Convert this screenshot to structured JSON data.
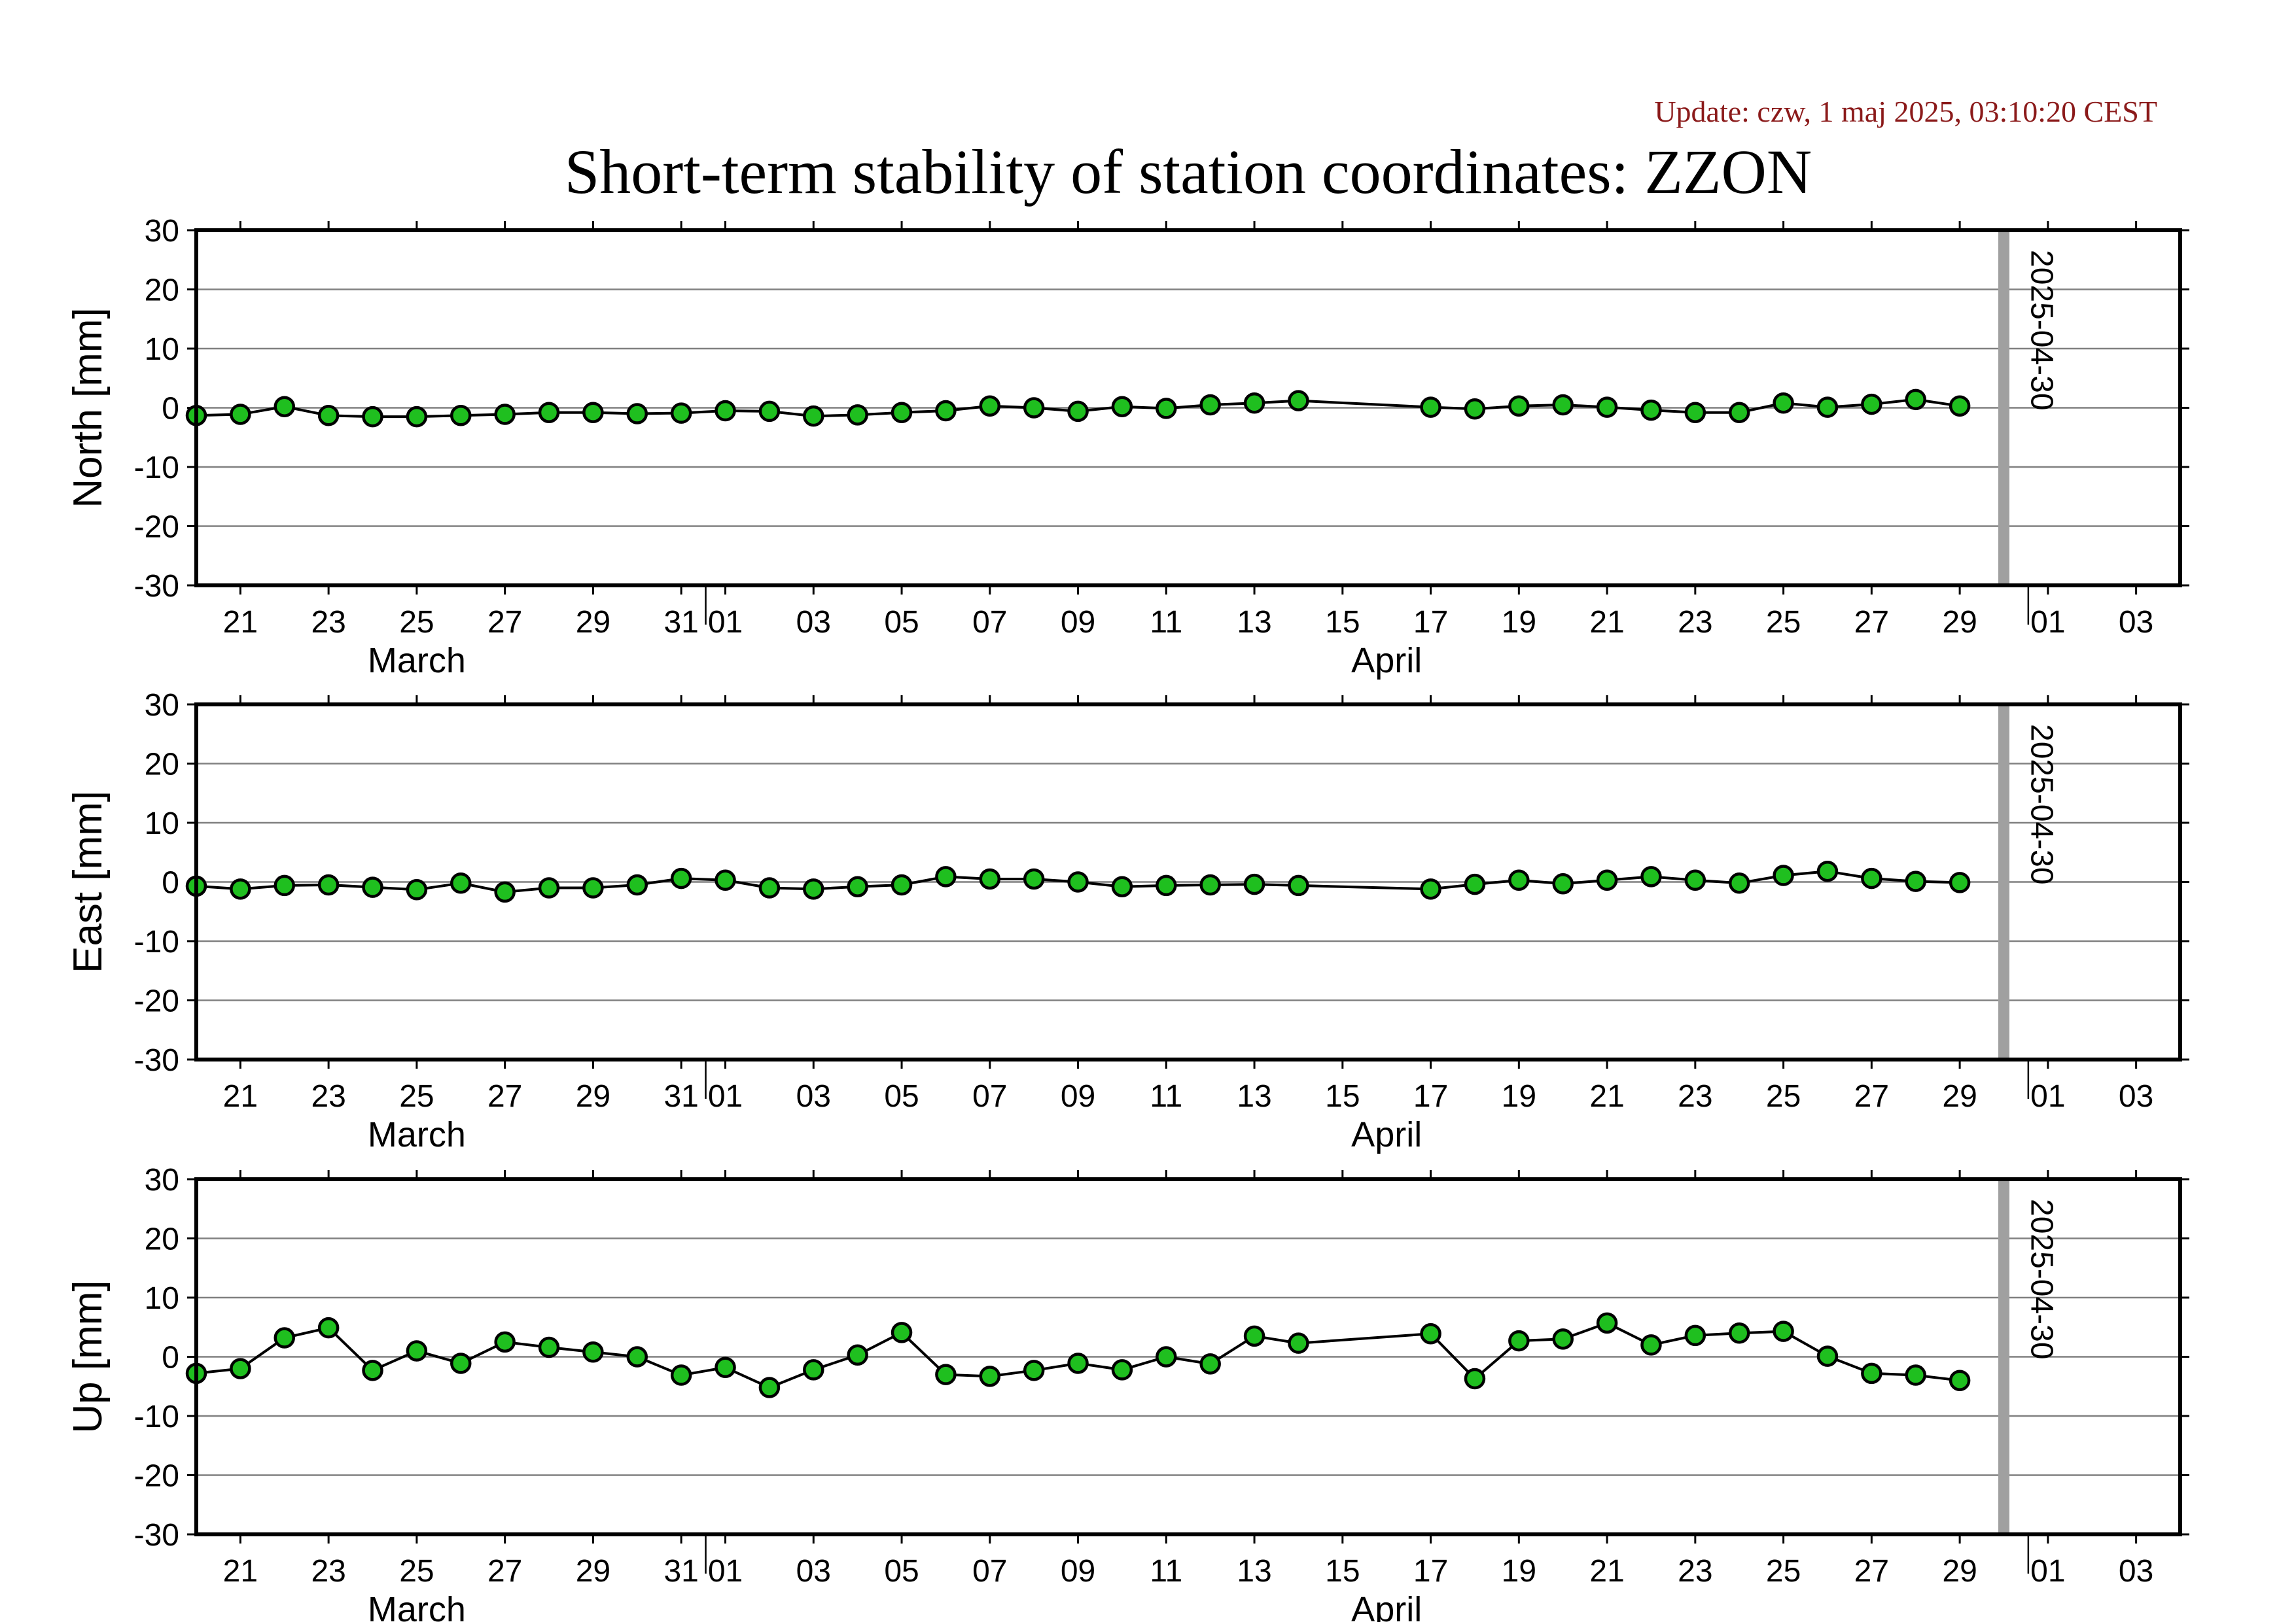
{
  "header": {
    "update": "Update: czw, 1 maj 2025, 03:10:20 CEST",
    "title": "Short-term stability of station coordinates: ZZON"
  },
  "style": {
    "point_fill": "#1fbf1f",
    "point_stroke": "#000000",
    "line": "#000000",
    "grid": "#808080",
    "marker_line": "#a0a0a0",
    "update_color": "#8b1a1a"
  },
  "chart_data": [
    {
      "type": "line",
      "panel": "north",
      "ylabel": "North [mm]",
      "ylim": [
        -30,
        30
      ],
      "yticks": [
        30,
        20,
        10,
        0,
        -10,
        -20,
        -30
      ],
      "xlim": [
        "2025-03-20",
        "2025-05-04"
      ],
      "grid": true,
      "xticks": [
        {
          "date": "2025-03-21",
          "label": "21"
        },
        {
          "date": "2025-03-23",
          "label": "23"
        },
        {
          "date": "2025-03-25",
          "label": "25"
        },
        {
          "date": "2025-03-27",
          "label": "27"
        },
        {
          "date": "2025-03-29",
          "label": "29"
        },
        {
          "date": "2025-03-31",
          "label": "31"
        },
        {
          "date": "2025-04-01",
          "label": "01"
        },
        {
          "date": "2025-04-03",
          "label": "03"
        },
        {
          "date": "2025-04-05",
          "label": "05"
        },
        {
          "date": "2025-04-07",
          "label": "07"
        },
        {
          "date": "2025-04-09",
          "label": "09"
        },
        {
          "date": "2025-04-11",
          "label": "11"
        },
        {
          "date": "2025-04-13",
          "label": "13"
        },
        {
          "date": "2025-04-15",
          "label": "15"
        },
        {
          "date": "2025-04-17",
          "label": "17"
        },
        {
          "date": "2025-04-19",
          "label": "19"
        },
        {
          "date": "2025-04-21",
          "label": "21"
        },
        {
          "date": "2025-04-23",
          "label": "23"
        },
        {
          "date": "2025-04-25",
          "label": "25"
        },
        {
          "date": "2025-04-27",
          "label": "27"
        },
        {
          "date": "2025-04-29",
          "label": "29"
        },
        {
          "date": "2025-05-01",
          "label": "01"
        },
        {
          "date": "2025-05-03",
          "label": "03"
        }
      ],
      "month_labels": [
        {
          "date": "2025-03-25",
          "label": "March"
        },
        {
          "date": "2025-04-16",
          "label": "April"
        }
      ],
      "month_boundaries": [
        "2025-04-01",
        "2025-05-01"
      ],
      "marker": {
        "date": "2025-04-30",
        "label": "2025-04-30"
      },
      "x": [
        "2025-03-20",
        "2025-03-21",
        "2025-03-22",
        "2025-03-23",
        "2025-03-24",
        "2025-03-25",
        "2025-03-26",
        "2025-03-27",
        "2025-03-28",
        "2025-03-29",
        "2025-03-30",
        "2025-03-31",
        "2025-04-01",
        "2025-04-02",
        "2025-04-03",
        "2025-04-04",
        "2025-04-05",
        "2025-04-06",
        "2025-04-07",
        "2025-04-08",
        "2025-04-09",
        "2025-04-10",
        "2025-04-11",
        "2025-04-12",
        "2025-04-13",
        "2025-04-14",
        "2025-04-17",
        "2025-04-18",
        "2025-04-19",
        "2025-04-20",
        "2025-04-21",
        "2025-04-22",
        "2025-04-23",
        "2025-04-24",
        "2025-04-25",
        "2025-04-26",
        "2025-04-27",
        "2025-04-28",
        "2025-04-29"
      ],
      "values": [
        -1.3,
        -1.1,
        0.2,
        -1.3,
        -1.5,
        -1.5,
        -1.3,
        -1.1,
        -0.8,
        -0.8,
        -1.0,
        -0.9,
        -0.5,
        -0.6,
        -1.4,
        -1.2,
        -0.8,
        -0.5,
        0.3,
        0.0,
        -0.6,
        0.2,
        -0.1,
        0.5,
        0.8,
        1.2,
        0.1,
        -0.2,
        0.3,
        0.5,
        0.1,
        -0.4,
        -0.8,
        -0.8,
        0.8,
        0.1,
        0.6,
        1.4,
        0.3
      ]
    },
    {
      "type": "line",
      "panel": "east",
      "ylabel": "East [mm]",
      "ylim": [
        -30,
        30
      ],
      "yticks": [
        30,
        20,
        10,
        0,
        -10,
        -20,
        -30
      ],
      "xlim": [
        "2025-03-20",
        "2025-05-04"
      ],
      "grid": true,
      "xticks": [
        {
          "date": "2025-03-21",
          "label": "21"
        },
        {
          "date": "2025-03-23",
          "label": "23"
        },
        {
          "date": "2025-03-25",
          "label": "25"
        },
        {
          "date": "2025-03-27",
          "label": "27"
        },
        {
          "date": "2025-03-29",
          "label": "29"
        },
        {
          "date": "2025-03-31",
          "label": "31"
        },
        {
          "date": "2025-04-01",
          "label": "01"
        },
        {
          "date": "2025-04-03",
          "label": "03"
        },
        {
          "date": "2025-04-05",
          "label": "05"
        },
        {
          "date": "2025-04-07",
          "label": "07"
        },
        {
          "date": "2025-04-09",
          "label": "09"
        },
        {
          "date": "2025-04-11",
          "label": "11"
        },
        {
          "date": "2025-04-13",
          "label": "13"
        },
        {
          "date": "2025-04-15",
          "label": "15"
        },
        {
          "date": "2025-04-17",
          "label": "17"
        },
        {
          "date": "2025-04-19",
          "label": "19"
        },
        {
          "date": "2025-04-21",
          "label": "21"
        },
        {
          "date": "2025-04-23",
          "label": "23"
        },
        {
          "date": "2025-04-25",
          "label": "25"
        },
        {
          "date": "2025-04-27",
          "label": "27"
        },
        {
          "date": "2025-04-29",
          "label": "29"
        },
        {
          "date": "2025-05-01",
          "label": "01"
        },
        {
          "date": "2025-05-03",
          "label": "03"
        }
      ],
      "month_labels": [
        {
          "date": "2025-03-25",
          "label": "March"
        },
        {
          "date": "2025-04-16",
          "label": "April"
        }
      ],
      "month_boundaries": [
        "2025-04-01",
        "2025-05-01"
      ],
      "marker": {
        "date": "2025-04-30",
        "label": "2025-04-30"
      },
      "x": [
        "2025-03-20",
        "2025-03-21",
        "2025-03-22",
        "2025-03-23",
        "2025-03-24",
        "2025-03-25",
        "2025-03-26",
        "2025-03-27",
        "2025-03-28",
        "2025-03-29",
        "2025-03-30",
        "2025-03-31",
        "2025-04-01",
        "2025-04-02",
        "2025-04-03",
        "2025-04-04",
        "2025-04-05",
        "2025-04-06",
        "2025-04-07",
        "2025-04-08",
        "2025-04-09",
        "2025-04-10",
        "2025-04-11",
        "2025-04-12",
        "2025-04-13",
        "2025-04-14",
        "2025-04-17",
        "2025-04-18",
        "2025-04-19",
        "2025-04-20",
        "2025-04-21",
        "2025-04-22",
        "2025-04-23",
        "2025-04-24",
        "2025-04-25",
        "2025-04-26",
        "2025-04-27",
        "2025-04-28",
        "2025-04-29"
      ],
      "values": [
        -0.7,
        -1.2,
        -0.6,
        -0.5,
        -0.9,
        -1.3,
        -0.2,
        -1.7,
        -1.0,
        -1.0,
        -0.5,
        0.6,
        0.3,
        -1.0,
        -1.2,
        -0.8,
        -0.5,
        0.9,
        0.5,
        0.5,
        0.0,
        -0.8,
        -0.6,
        -0.5,
        -0.4,
        -0.6,
        -1.2,
        -0.4,
        0.3,
        -0.3,
        0.3,
        0.9,
        0.3,
        -0.2,
        1.1,
        1.8,
        0.6,
        0.1,
        -0.1
      ]
    },
    {
      "type": "line",
      "panel": "up",
      "ylabel": "Up [mm]",
      "ylim": [
        -30,
        30
      ],
      "yticks": [
        30,
        20,
        10,
        0,
        -10,
        -20,
        -30
      ],
      "xlim": [
        "2025-03-20",
        "2025-05-04"
      ],
      "grid": true,
      "xticks": [
        {
          "date": "2025-03-21",
          "label": "21"
        },
        {
          "date": "2025-03-23",
          "label": "23"
        },
        {
          "date": "2025-03-25",
          "label": "25"
        },
        {
          "date": "2025-03-27",
          "label": "27"
        },
        {
          "date": "2025-03-29",
          "label": "29"
        },
        {
          "date": "2025-03-31",
          "label": "31"
        },
        {
          "date": "2025-04-01",
          "label": "01"
        },
        {
          "date": "2025-04-03",
          "label": "03"
        },
        {
          "date": "2025-04-05",
          "label": "05"
        },
        {
          "date": "2025-04-07",
          "label": "07"
        },
        {
          "date": "2025-04-09",
          "label": "09"
        },
        {
          "date": "2025-04-11",
          "label": "11"
        },
        {
          "date": "2025-04-13",
          "label": "13"
        },
        {
          "date": "2025-04-15",
          "label": "15"
        },
        {
          "date": "2025-04-17",
          "label": "17"
        },
        {
          "date": "2025-04-19",
          "label": "19"
        },
        {
          "date": "2025-04-21",
          "label": "21"
        },
        {
          "date": "2025-04-23",
          "label": "23"
        },
        {
          "date": "2025-04-25",
          "label": "25"
        },
        {
          "date": "2025-04-27",
          "label": "27"
        },
        {
          "date": "2025-04-29",
          "label": "29"
        },
        {
          "date": "2025-05-01",
          "label": "01"
        },
        {
          "date": "2025-05-03",
          "label": "03"
        }
      ],
      "month_labels": [
        {
          "date": "2025-03-25",
          "label": "March"
        },
        {
          "date": "2025-04-16",
          "label": "April"
        }
      ],
      "month_boundaries": [
        "2025-04-01",
        "2025-05-01"
      ],
      "marker": {
        "date": "2025-04-30",
        "label": "2025-04-30"
      },
      "x": [
        "2025-03-20",
        "2025-03-21",
        "2025-03-22",
        "2025-03-23",
        "2025-03-24",
        "2025-03-25",
        "2025-03-26",
        "2025-03-27",
        "2025-03-28",
        "2025-03-29",
        "2025-03-30",
        "2025-03-31",
        "2025-04-01",
        "2025-04-02",
        "2025-04-03",
        "2025-04-04",
        "2025-04-05",
        "2025-04-06",
        "2025-04-07",
        "2025-04-08",
        "2025-04-09",
        "2025-04-10",
        "2025-04-11",
        "2025-04-12",
        "2025-04-13",
        "2025-04-14",
        "2025-04-17",
        "2025-04-18",
        "2025-04-19",
        "2025-04-20",
        "2025-04-21",
        "2025-04-22",
        "2025-04-23",
        "2025-04-24",
        "2025-04-25",
        "2025-04-26",
        "2025-04-27",
        "2025-04-28",
        "2025-04-29"
      ],
      "values": [
        -2.8,
        -2.0,
        3.2,
        4.9,
        -2.3,
        1.0,
        -1.1,
        2.5,
        1.6,
        0.8,
        0.0,
        -3.1,
        -1.8,
        -5.2,
        -2.2,
        0.3,
        4.1,
        -3.0,
        -3.3,
        -2.3,
        -1.1,
        -2.2,
        0.0,
        -1.2,
        3.5,
        2.3,
        3.9,
        -3.7,
        2.7,
        3.0,
        5.7,
        2.0,
        3.6,
        4.0,
        4.3,
        0.1,
        -2.8,
        -3.1,
        -4.0
      ]
    }
  ]
}
